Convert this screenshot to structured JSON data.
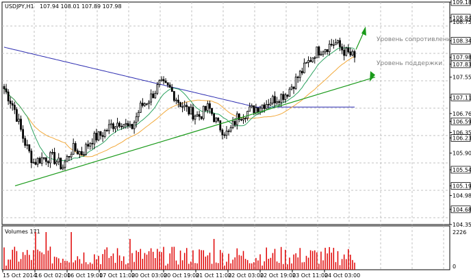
{
  "header": {
    "symbol": "USDJPY,H1",
    "ohlc": "107.94 108.01 107.89 107.98",
    "volumes_label": "Volumes 171"
  },
  "annotations": {
    "resistance": "Уровень сопротивления",
    "support": "Уровень поддержки"
  },
  "price_axis": {
    "ticks": [
      "109.18",
      "108.84",
      "108.75",
      "108.34",
      "107.98",
      "107.83",
      "107.55",
      "107.11",
      "106.76",
      "106.59",
      "106.35",
      "106.23",
      "105.90",
      "105.54",
      "105.19",
      "104.98",
      "104.68",
      "104.35"
    ],
    "boxed": [
      "109.18",
      "108.84",
      "108.34",
      "107.98",
      "107.83",
      "107.11",
      "106.59",
      "106.23",
      "105.54",
      "105.19",
      "104.68"
    ],
    "current": "107.98"
  },
  "volume_axis": {
    "top": "2226",
    "bottom": "0"
  },
  "time_axis": [
    "15 Oct 2014",
    "16 Oct 02:00",
    "16 Oct 19:00",
    "17 Oct 11:00",
    "20 Oct 03:00",
    "20 Oct 19:00",
    "21 Oct 11:00",
    "22 Oct 03:00",
    "22 Oct 19:00",
    "23 Oct 11:00",
    "24 Oct 03:00"
  ],
  "colors": {
    "background": "#ffffff",
    "grid": "#c0c0c0",
    "candle": "#000000",
    "ma_fast": "#2ca25f",
    "ma_mid": "#f2a93b",
    "ma_slow": "#2b2bb0",
    "trendline": "#1a9a1a",
    "volume": "#e00000"
  },
  "chart_data": {
    "type": "line",
    "title": "USDJPY,H1",
    "ylim": [
      104.35,
      109.18
    ],
    "series": [
      {
        "name": "USDJPY,H1",
        "values": [
          107.3,
          106.9,
          106.2,
          105.7,
          105.8,
          105.8,
          105.6,
          106.0,
          105.9,
          106.2,
          106.3,
          106.5,
          106.6,
          106.4,
          106.9,
          107.1,
          107.4,
          107.3,
          107.0,
          106.8,
          106.7,
          106.9,
          106.5,
          106.3,
          106.7,
          106.8,
          106.9,
          107.0,
          107.1,
          107.2,
          107.5,
          107.8,
          108.1,
          108.2,
          108.3,
          108.1,
          107.98
        ]
      }
    ],
    "trendline": {
      "from": [
        0,
        105.19
      ],
      "to": [
        40,
        107.55
      ]
    },
    "levels": [
      {
        "label": "Уровень сопротивления",
        "value": 108.34
      },
      {
        "label": "Уровень поддержки",
        "value": 107.83
      }
    ]
  }
}
